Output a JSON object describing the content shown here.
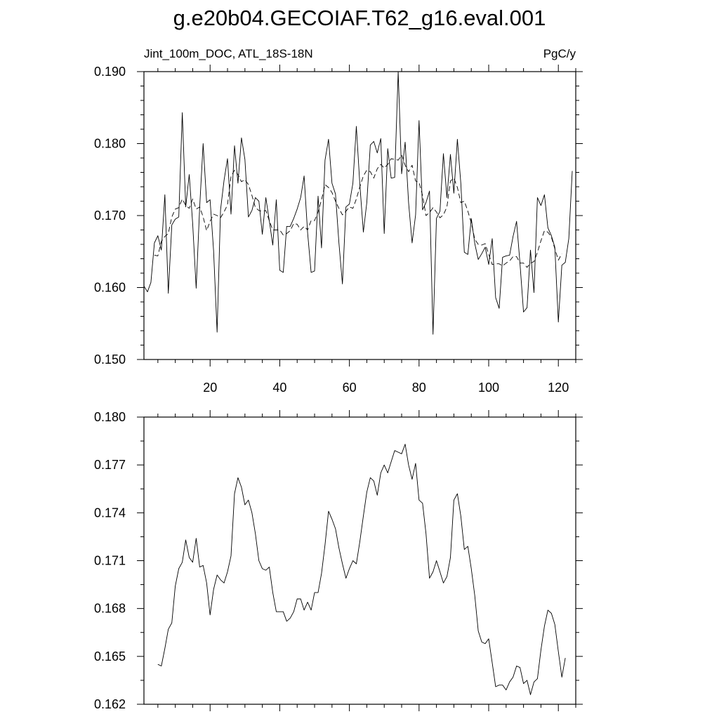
{
  "figure_title": "g.e20b04.GECOIAF.T62_g16.eval.001",
  "chart_data": [
    {
      "type": "line",
      "left_string": "Jint_100m_DOC, ATL_18S-18N",
      "right_string": "PgC/y",
      "xlim": [
        1,
        125
      ],
      "ylim": [
        0.15,
        0.19
      ],
      "x_ticks": [
        20,
        40,
        60,
        80,
        100,
        120
      ],
      "x_tick_labels": [
        "20",
        "40",
        "60",
        "80",
        "100",
        "120"
      ],
      "y_ticks": [
        0.15,
        0.16,
        0.17,
        0.18,
        0.19
      ],
      "y_tick_labels": [
        "0.150",
        "0.160",
        "0.170",
        "0.180",
        "0.190"
      ],
      "grid": false,
      "series": [
        {
          "style": "solid",
          "x_start": 1,
          "values": [
            0.1602,
            0.1594,
            0.1607,
            0.1662,
            0.1672,
            0.1652,
            0.1729,
            0.1592,
            0.1687,
            0.1695,
            0.1698,
            0.1843,
            0.1712,
            0.1757,
            0.1689,
            0.1599,
            0.1712,
            0.18,
            0.1718,
            0.1722,
            0.1651,
            0.1538,
            0.1708,
            0.1749,
            0.1779,
            0.1702,
            0.1797,
            0.1745,
            0.1808,
            0.1778,
            0.1698,
            0.1707,
            0.1725,
            0.172,
            0.1674,
            0.1725,
            0.1693,
            0.1659,
            0.1722,
            0.1624,
            0.1621,
            0.1685,
            0.1685,
            0.1696,
            0.1709,
            0.1725,
            0.1755,
            0.1676,
            0.1621,
            0.1623,
            0.1727,
            0.1655,
            0.1777,
            0.1806,
            0.1745,
            0.173,
            0.1662,
            0.1605,
            0.1712,
            0.1716,
            0.1745,
            0.1824,
            0.1743,
            0.1677,
            0.1718,
            0.1798,
            0.1803,
            0.1787,
            0.1807,
            0.1675,
            0.1793,
            0.1752,
            0.1753,
            0.19,
            0.1758,
            0.1802,
            0.1718,
            0.1662,
            0.1701,
            0.1832,
            0.1708,
            0.1718,
            0.1734,
            0.1535,
            0.1696,
            0.1706,
            0.1786,
            0.1725,
            0.1785,
            0.1731,
            0.1806,
            0.1745,
            0.1649,
            0.1646,
            0.1696,
            0.1661,
            0.1639,
            0.1647,
            0.1656,
            0.1632,
            0.1668,
            0.1586,
            0.1571,
            0.1642,
            0.1644,
            0.1645,
            0.1671,
            0.1692,
            0.1633,
            0.1566,
            0.1572,
            0.1652,
            0.1593,
            0.1725,
            0.1714,
            0.1729,
            0.1683,
            0.1672,
            0.1656,
            0.1552,
            0.1631,
            0.1635,
            0.1668,
            0.1762
          ]
        },
        {
          "style": "dashed",
          "x_start": 4,
          "values": [
            0.1645,
            0.1644,
            0.1664,
            0.1671,
            0.1675,
            0.1698,
            0.1709,
            0.1711,
            0.1723,
            0.1714,
            0.171,
            0.1723,
            0.1709,
            0.1712,
            0.1698,
            0.1679,
            0.1692,
            0.1702,
            0.17,
            0.1697,
            0.1705,
            0.1715,
            0.1754,
            0.1763,
            0.1757,
            0.1747,
            0.175,
            0.1743,
            0.1728,
            0.1711,
            0.1707,
            0.1706,
            0.1707,
            0.1693,
            0.168,
            0.168,
            0.168,
            0.1673,
            0.1675,
            0.1679,
            0.1689,
            0.1688,
            0.168,
            0.1685,
            0.168,
            0.1693,
            0.1693,
            0.1705,
            0.1722,
            0.1743,
            0.1739,
            0.1732,
            0.172,
            0.171,
            0.1701,
            0.1706,
            0.1712,
            0.171,
            0.1723,
            0.174,
            0.1755,
            0.1763,
            0.1761,
            0.1752,
            0.1765,
            0.1771,
            0.1766,
            0.1771,
            0.1779,
            0.1778,
            0.1777,
            0.1784,
            0.177,
            0.1761,
            0.177,
            0.1748,
            0.1746,
            0.1728,
            0.17,
            0.1704,
            0.1711,
            0.1705,
            0.1697,
            0.1701,
            0.1712,
            0.1748,
            0.1752,
            0.1739,
            0.1718,
            0.172,
            0.1706,
            0.169,
            0.1667,
            0.166,
            0.1659,
            0.1661,
            0.1646,
            0.1632,
            0.1633,
            0.1633,
            0.163,
            0.1634,
            0.1637,
            0.1643,
            0.1643,
            0.1634,
            0.1634,
            0.1628,
            0.1634,
            0.1636,
            0.1649,
            0.1665,
            0.1679,
            0.1677,
            0.167,
            0.1654,
            0.1638,
            0.1647
          ]
        }
      ]
    },
    {
      "type": "line",
      "xlim": [
        1,
        125
      ],
      "ylim": [
        0.162,
        0.18
      ],
      "x_ticks": [
        20,
        40,
        60,
        80,
        100,
        120
      ],
      "y_ticks": [
        0.162,
        0.165,
        0.168,
        0.171,
        0.174,
        0.177,
        0.18
      ],
      "y_tick_labels": [
        "0.162",
        "0.165",
        "0.168",
        "0.171",
        "0.174",
        "0.177",
        "0.180"
      ],
      "grid": false,
      "series": [
        {
          "style": "solid",
          "x_start": 5,
          "values": [
            0.1645,
            0.1644,
            0.1655,
            0.1667,
            0.1671,
            0.1694,
            0.1705,
            0.1709,
            0.1723,
            0.1712,
            0.1709,
            0.1724,
            0.1706,
            0.1707,
            0.1696,
            0.1676,
            0.1692,
            0.1701,
            0.1698,
            0.1696,
            0.1703,
            0.1713,
            0.1752,
            0.1762,
            0.1756,
            0.1745,
            0.1748,
            0.174,
            0.1727,
            0.171,
            0.1705,
            0.1704,
            0.1706,
            0.169,
            0.1678,
            0.1678,
            0.1678,
            0.1672,
            0.1674,
            0.1678,
            0.1686,
            0.1686,
            0.1679,
            0.1684,
            0.1679,
            0.169,
            0.169,
            0.1702,
            0.172,
            0.1741,
            0.1736,
            0.173,
            0.1718,
            0.1708,
            0.1699,
            0.1705,
            0.171,
            0.1708,
            0.1722,
            0.1738,
            0.1753,
            0.1762,
            0.176,
            0.1751,
            0.1765,
            0.177,
            0.1765,
            0.1772,
            0.1779,
            0.1778,
            0.1777,
            0.1783,
            0.177,
            0.1761,
            0.1771,
            0.1748,
            0.1746,
            0.1727,
            0.1699,
            0.1703,
            0.171,
            0.1703,
            0.1696,
            0.17,
            0.1712,
            0.1748,
            0.1752,
            0.1738,
            0.1717,
            0.1719,
            0.1705,
            0.1688,
            0.1666,
            0.1659,
            0.1658,
            0.1661,
            0.1646,
            0.1631,
            0.1632,
            0.1632,
            0.1629,
            0.1634,
            0.1637,
            0.1644,
            0.1643,
            0.1633,
            0.1635,
            0.1626,
            0.1634,
            0.1636,
            0.1654,
            0.1669,
            0.1679,
            0.1677,
            0.167,
            0.1653,
            0.1637,
            0.1649
          ]
        }
      ]
    }
  ]
}
